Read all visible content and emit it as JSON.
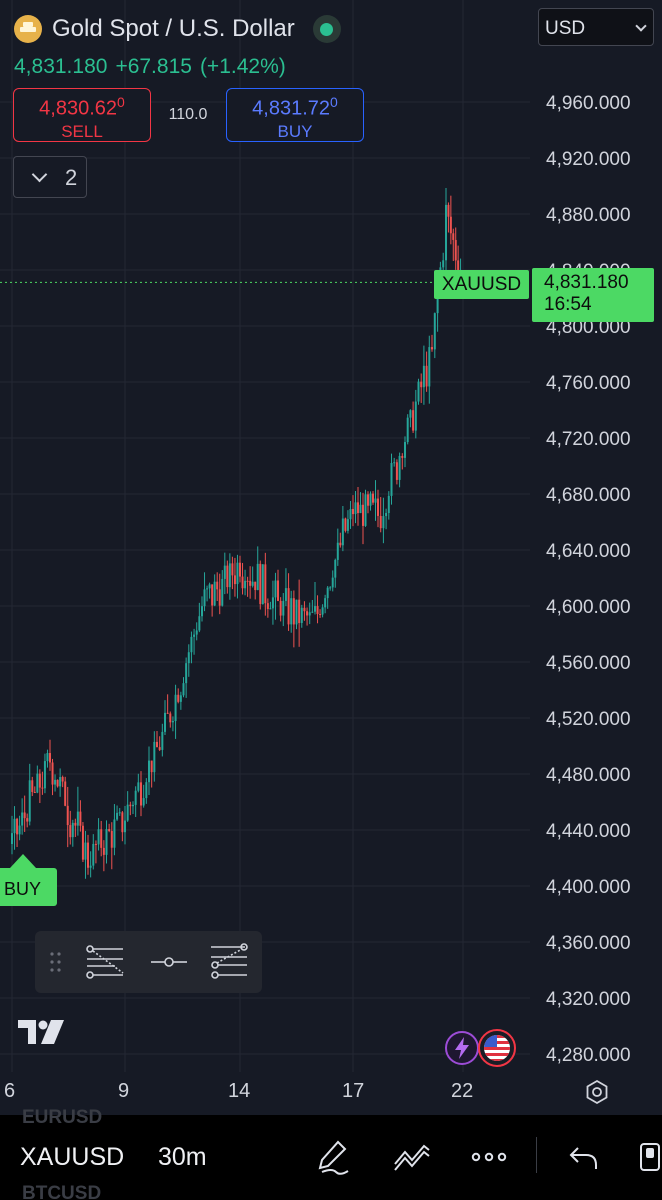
{
  "header": {
    "symbol_name": "Gold Spot / U.S. Dollar",
    "currency": "USD",
    "last_price": "4,831.180",
    "change": "+67.815",
    "change_percent": "(+1.42%)"
  },
  "trade": {
    "sell_price": "4,830.62",
    "sell_price_sup": "0",
    "sell_label": "SELL",
    "spread": "110.0",
    "buy_price": "4,831.72",
    "buy_price_sup": "0",
    "buy_label": "BUY"
  },
  "indicators_toggle": {
    "count": "2"
  },
  "price_axis": {
    "labels": [
      "4,960.000",
      "4,920.000",
      "4,880.000",
      "4,840.000",
      "4,800.000",
      "4,760.000",
      "4,720.000",
      "4,680.000",
      "4,640.000",
      "4,600.000",
      "4,560.000",
      "4,520.000",
      "4,480.000",
      "4,440.000",
      "4,400.000",
      "4,360.000",
      "4,320.000",
      "4,280.000"
    ]
  },
  "current_price_label": {
    "symbol": "XAUUSD",
    "price": "4,831.180",
    "countdown": "16:54"
  },
  "buy_marker": {
    "label": "BUY"
  },
  "time_axis": {
    "labels": [
      "6",
      "9",
      "14",
      "17",
      "22"
    ]
  },
  "bottom_toolbar": {
    "symbol": "XAUUSD",
    "timeframe": "30m",
    "ghost_above": "EURUSD",
    "ghost_below": "BTCUSD"
  },
  "colors": {
    "up": "#26a69a",
    "down": "#ef5350",
    "accent_green": "#4cd964",
    "background": "#161a25"
  },
  "chart_data": {
    "type": "candlestick",
    "symbol": "XAUUSD",
    "interval": "30m",
    "x_ticks": [
      "6",
      "9",
      "14",
      "17",
      "22"
    ],
    "ylim": [
      4260,
      4990
    ],
    "last": 4831.18,
    "approx_path": [
      {
        "x": "6",
        "close": 4430
      },
      {
        "x": "7",
        "close": 4490
      },
      {
        "x": "8",
        "close": 4420
      },
      {
        "x": "9",
        "close": 4450
      },
      {
        "x": "10",
        "close": 4510
      },
      {
        "x": "12",
        "close": 4600
      },
      {
        "x": "14",
        "close": 4630
      },
      {
        "x": "15",
        "close": 4600
      },
      {
        "x": "16",
        "close": 4590
      },
      {
        "x": "17",
        "close": 4670
      },
      {
        "x": "18",
        "close": 4665
      },
      {
        "x": "19",
        "close": 4720
      },
      {
        "x": "20",
        "close": 4780
      },
      {
        "x": "21",
        "close": 4880
      },
      {
        "x": "22",
        "close": 4831.18
      }
    ]
  }
}
